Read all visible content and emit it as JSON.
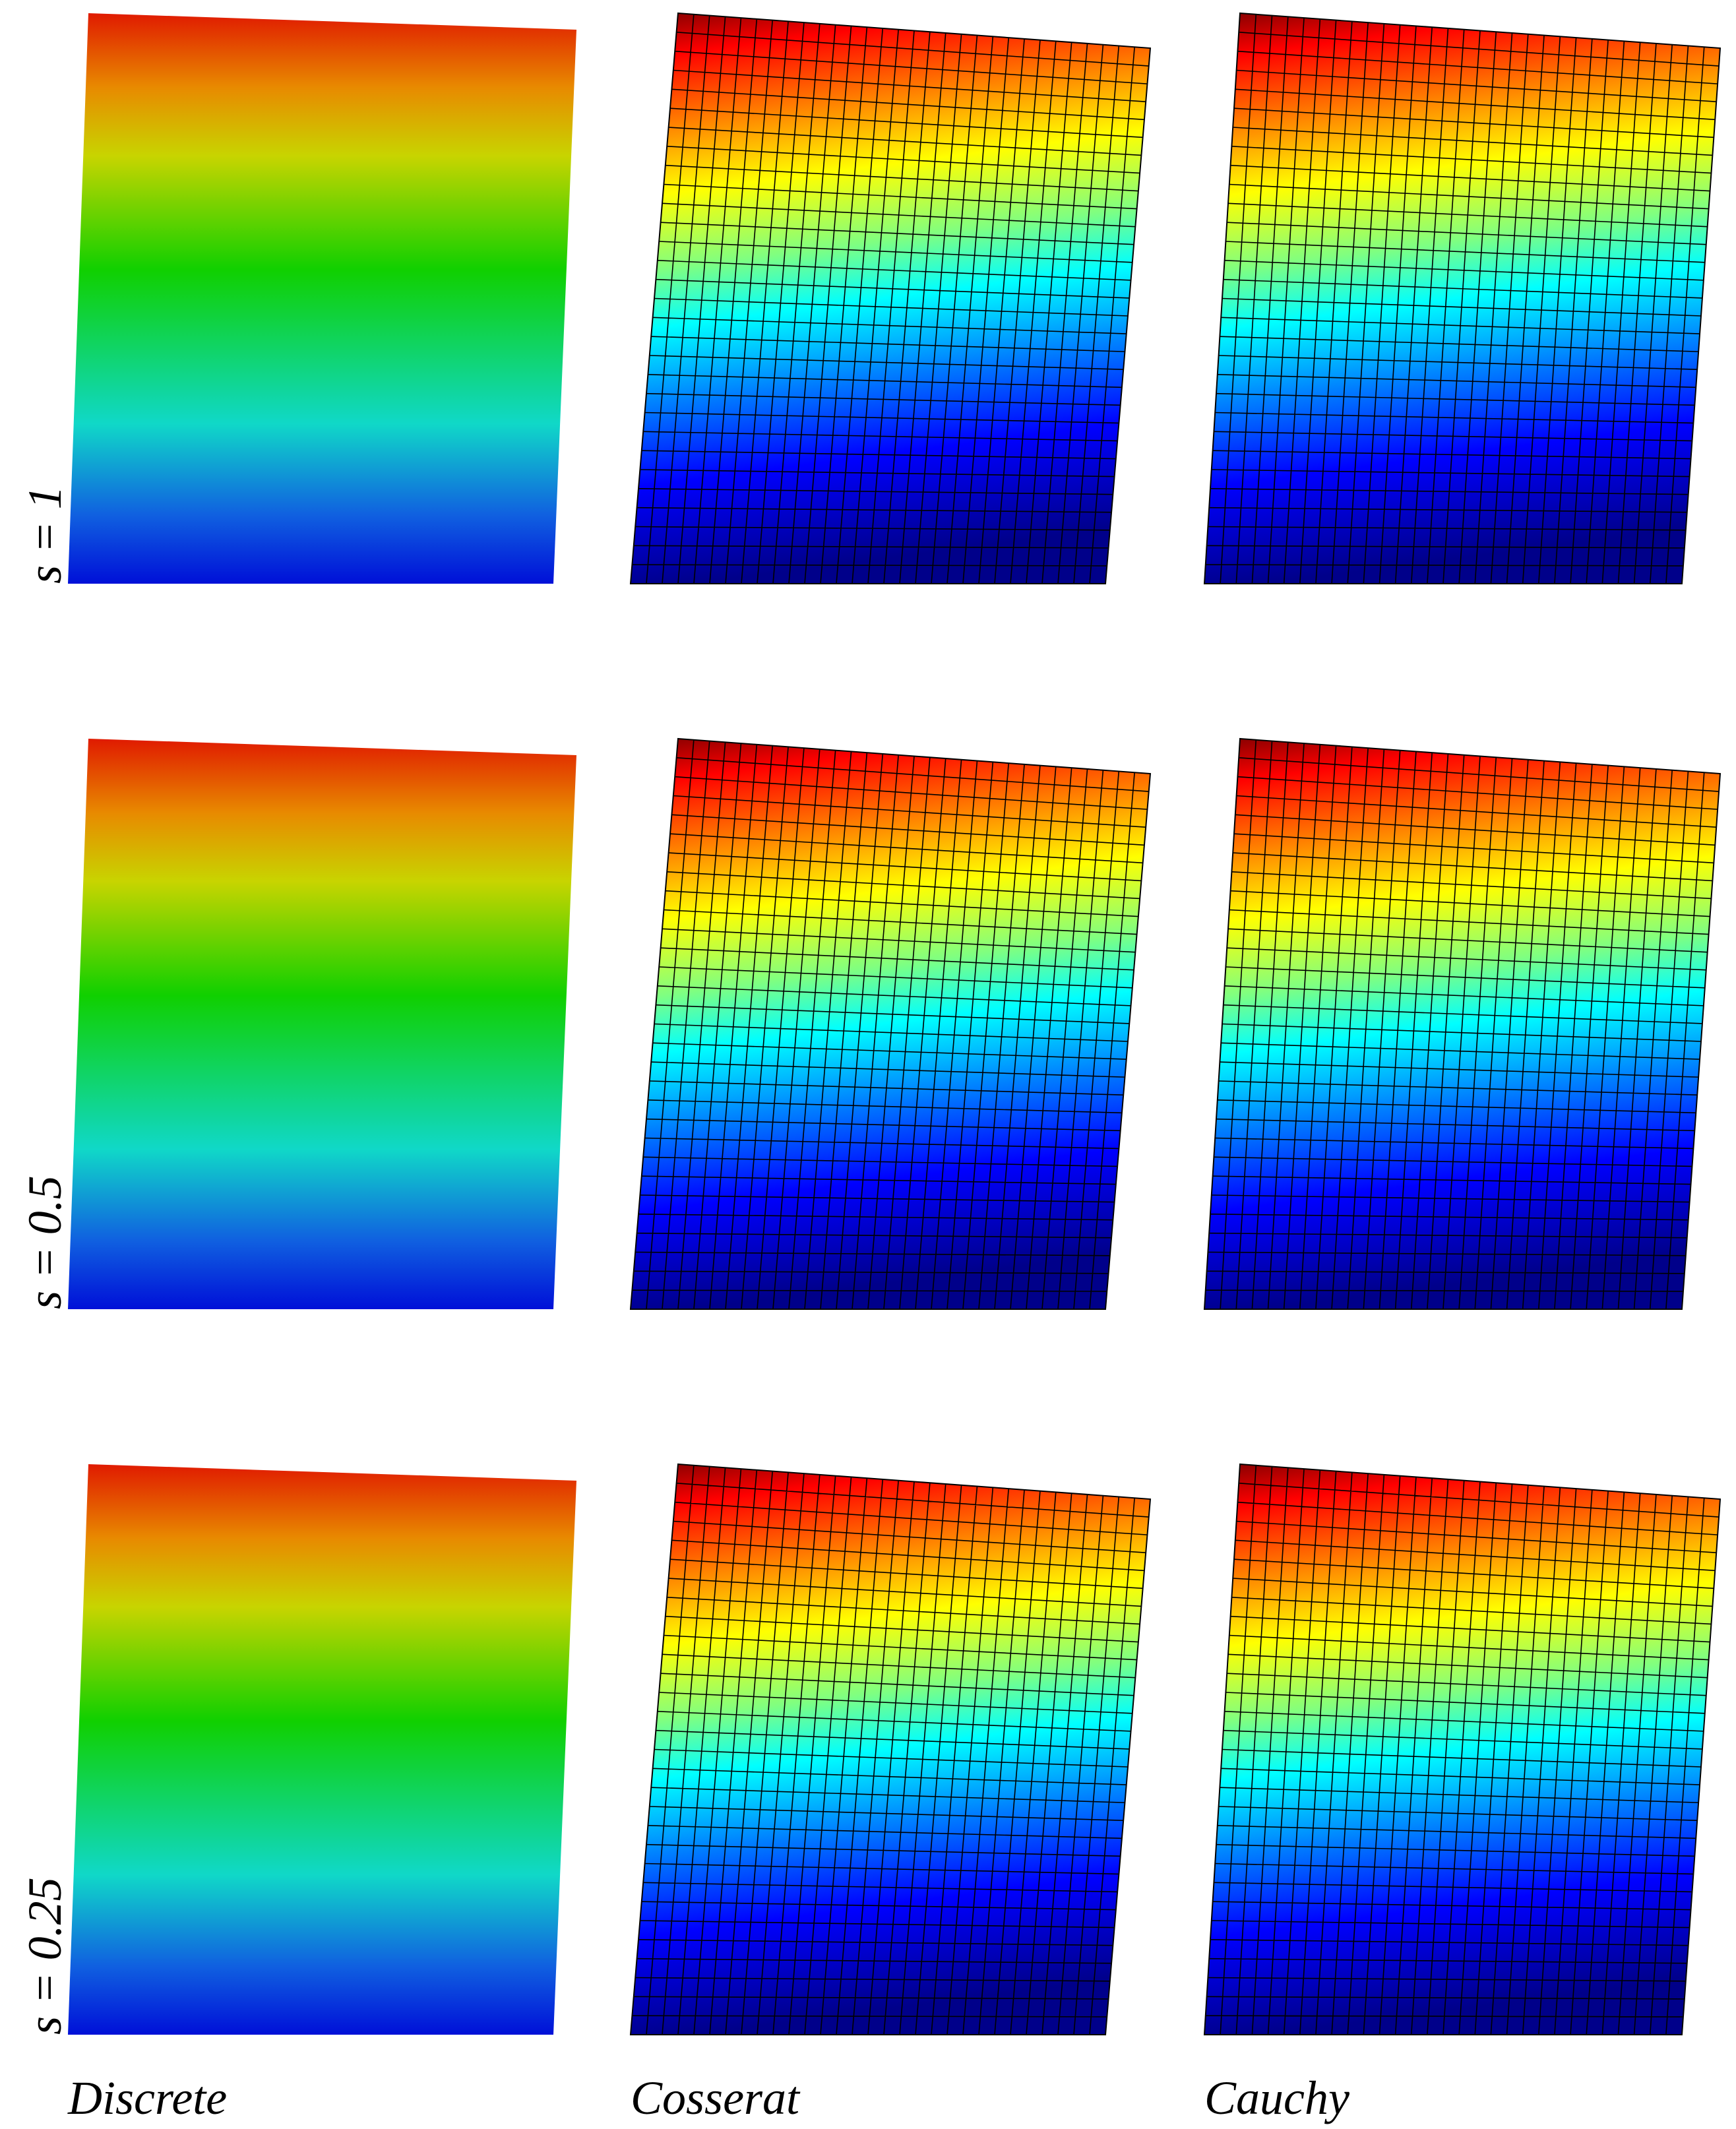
{
  "row_labels": [
    "s = 1",
    "s = 0.5",
    "s = 0.25"
  ],
  "column_labels": [
    "Discrete",
    "Cosserat",
    "Cauchy"
  ]
}
